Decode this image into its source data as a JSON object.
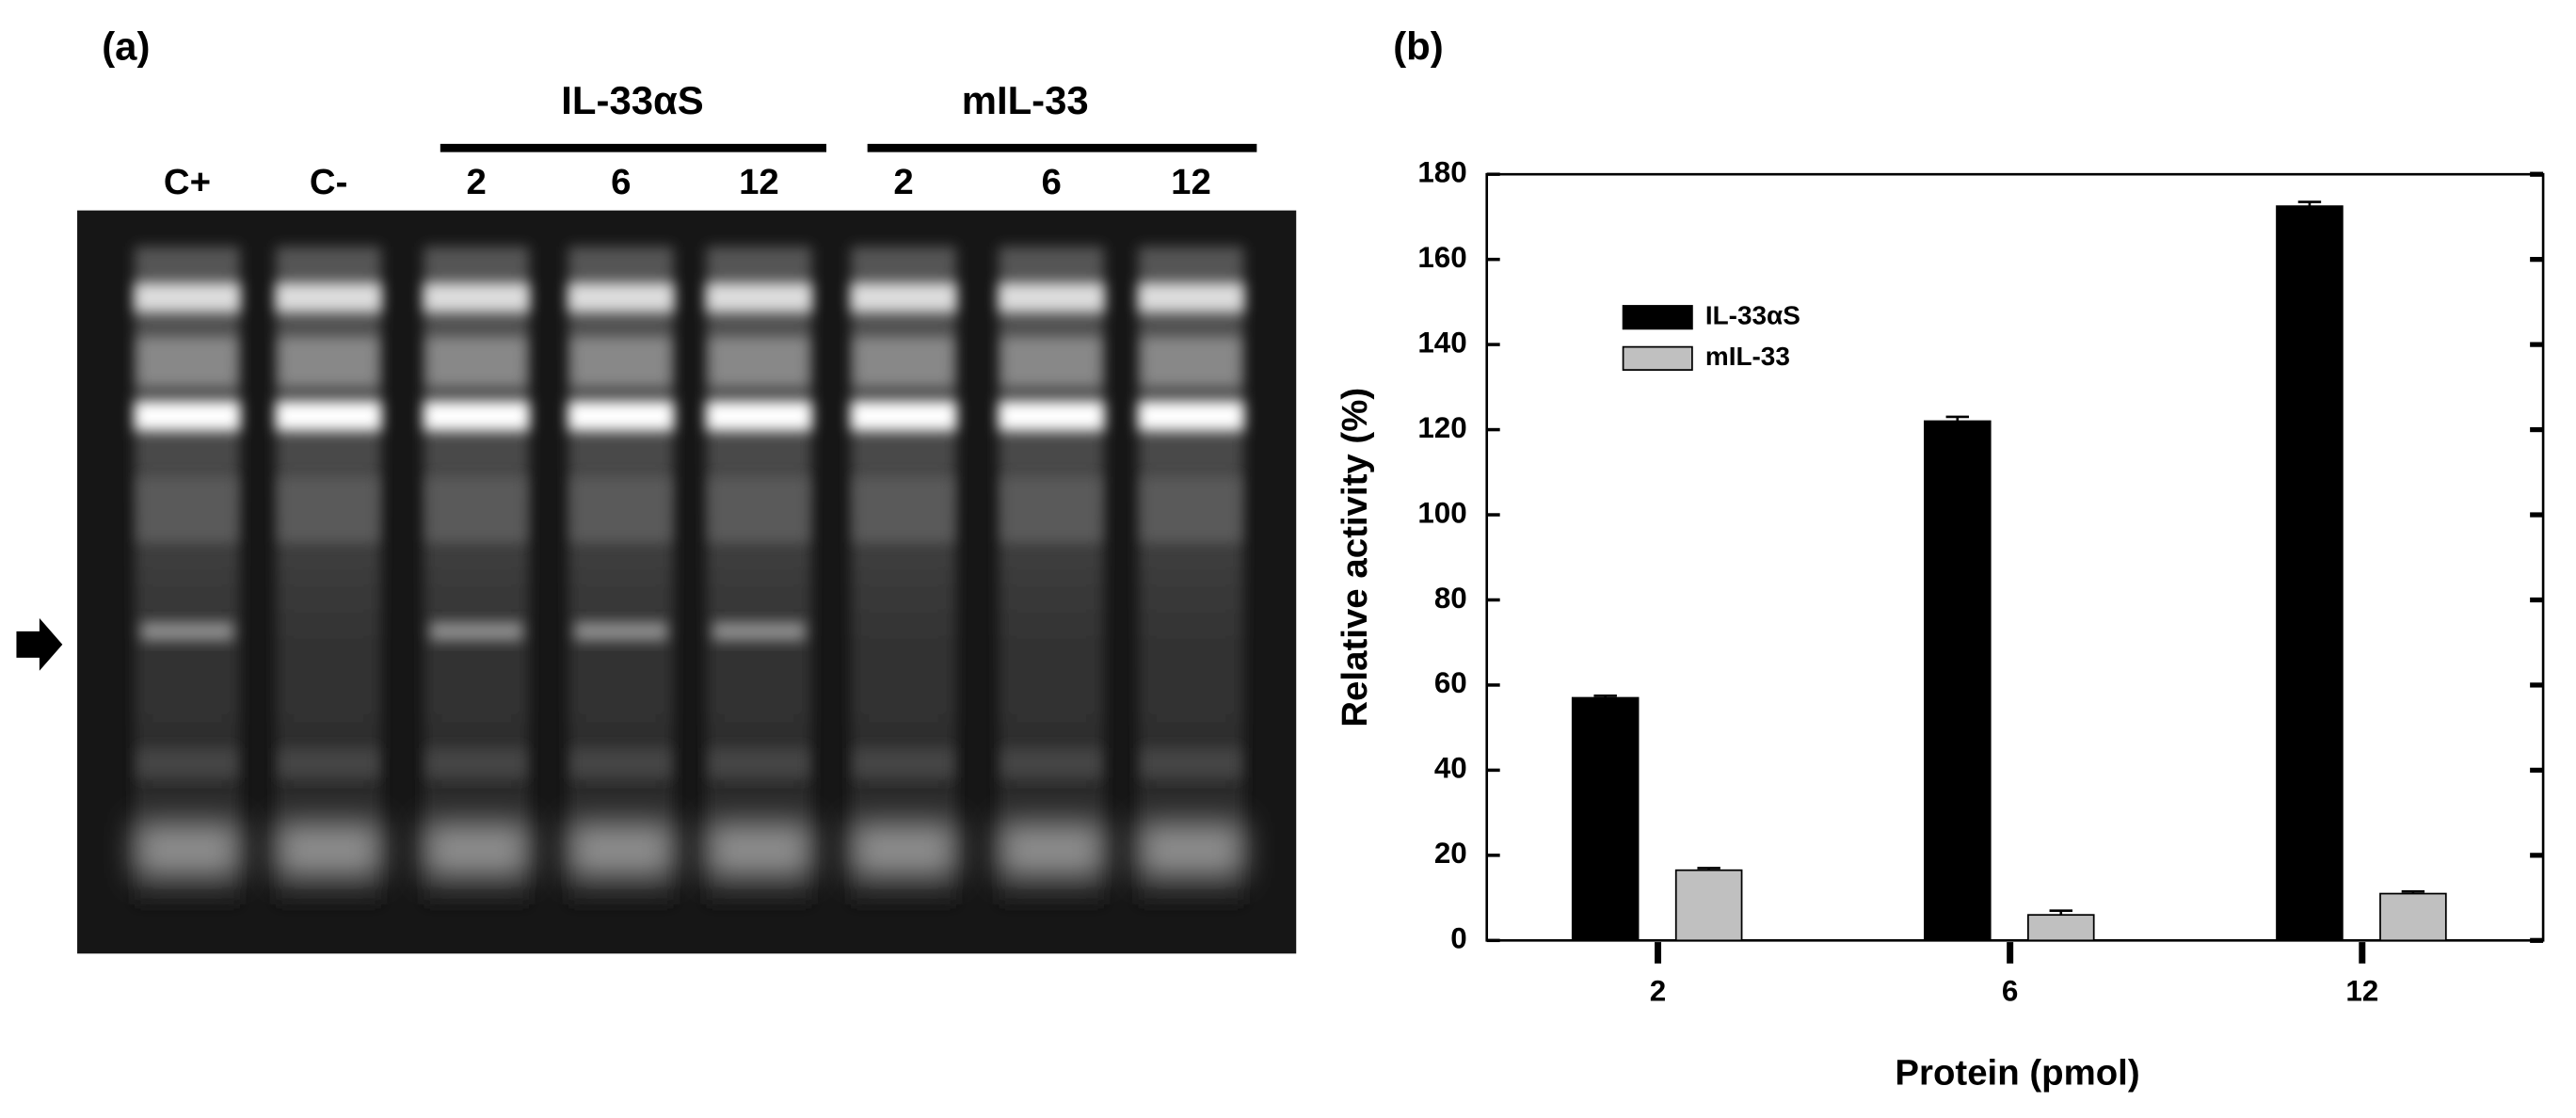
{
  "gel": {
    "panel_label": "(a)",
    "groups": [
      {
        "label": "IL-33αS"
      },
      {
        "label": "mIL-33"
      }
    ],
    "lanes": [
      "C+",
      "C-",
      "2",
      "6",
      "12",
      "2",
      "6",
      "12"
    ]
  },
  "chart_data": {
    "type": "bar",
    "panel_label": "(b)",
    "xlabel": "Protein (pmol)",
    "ylabel": "Relative activity (%)",
    "categories": [
      "2",
      "6",
      "12"
    ],
    "series": [
      {
        "name": "IL-33αS",
        "color": "#000000",
        "values": [
          57,
          122,
          172.5
        ],
        "errors": [
          0.5,
          1,
          1
        ]
      },
      {
        "name": "mIL-33",
        "color": "#c0c0c0",
        "values": [
          16.5,
          6,
          11
        ],
        "errors": [
          0.5,
          1,
          0.5
        ]
      }
    ],
    "ylim": [
      0,
      180
    ],
    "yticks": [
      0,
      20,
      40,
      60,
      80,
      100,
      120,
      140,
      160,
      180
    ]
  }
}
